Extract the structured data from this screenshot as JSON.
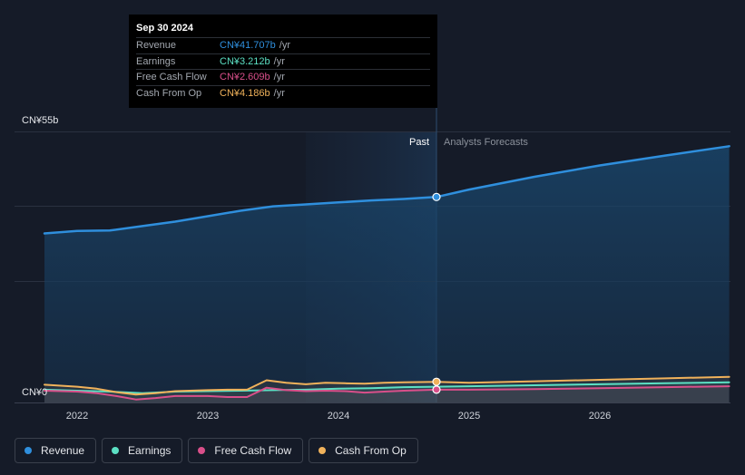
{
  "tooltip": {
    "date": "Sep 30 2024",
    "rows": [
      {
        "label": "Revenue",
        "value": "CN¥41.707b",
        "unit": "/yr",
        "color": "#2f8fdd"
      },
      {
        "label": "Earnings",
        "value": "CN¥3.212b",
        "unit": "/yr",
        "color": "#5ce0c4"
      },
      {
        "label": "Free Cash Flow",
        "value": "CN¥2.609b",
        "unit": "/yr",
        "color": "#d94f8a"
      },
      {
        "label": "Cash From Op",
        "value": "CN¥4.186b",
        "unit": "/yr",
        "color": "#f0b25b"
      }
    ]
  },
  "labels": {
    "past": "Past",
    "forecast": "Analysts Forecasts",
    "y_top": "CN¥55b",
    "y_zero": "CN¥0"
  },
  "legend": [
    {
      "label": "Revenue",
      "color": "#2f8fdd"
    },
    {
      "label": "Earnings",
      "color": "#5ce0c4"
    },
    {
      "label": "Free Cash Flow",
      "color": "#d94f8a"
    },
    {
      "label": "Cash From Op",
      "color": "#f0b25b"
    }
  ],
  "chart_data": {
    "type": "line",
    "x_ticks": [
      2022,
      2023,
      2024,
      2025,
      2026
    ],
    "xlim": [
      2021.7,
      2026.99
    ],
    "ylim": [
      0,
      55
    ],
    "y_unit": "CN¥ b",
    "past_until": 2024.75,
    "highlight_from": 2023.75,
    "series": [
      {
        "name": "Revenue",
        "color": "#2f8fdd",
        "fill": true,
        "x": [
          2021.75,
          2022.0,
          2022.25,
          2022.5,
          2022.75,
          2023.0,
          2023.25,
          2023.5,
          2023.75,
          2024.0,
          2024.25,
          2024.5,
          2024.75,
          2025.0,
          2025.5,
          2026.0,
          2026.5,
          2026.99
        ],
        "y": [
          34.3,
          34.8,
          34.9,
          35.8,
          36.7,
          37.8,
          38.9,
          39.8,
          40.2,
          40.6,
          41.0,
          41.3,
          41.7,
          43.2,
          45.8,
          48.1,
          50.1,
          52.0
        ]
      },
      {
        "name": "Earnings",
        "color": "#5ce0c4",
        "x": [
          2021.75,
          2022.0,
          2022.25,
          2022.5,
          2022.75,
          2023.0,
          2023.25,
          2023.5,
          2023.75,
          2024.0,
          2024.25,
          2024.5,
          2024.75,
          2025.0,
          2025.5,
          2026.0,
          2026.5,
          2026.99
        ],
        "y": [
          2.6,
          2.4,
          2.2,
          1.9,
          2.2,
          2.3,
          2.4,
          2.5,
          2.6,
          2.8,
          2.9,
          3.1,
          3.2,
          3.3,
          3.5,
          3.7,
          3.9,
          4.1
        ]
      },
      {
        "name": "Free Cash Flow",
        "color": "#d94f8a",
        "x": [
          2021.75,
          2022.0,
          2022.15,
          2022.3,
          2022.45,
          2022.6,
          2022.75,
          2023.0,
          2023.15,
          2023.3,
          2023.45,
          2023.6,
          2023.75,
          2023.9,
          2024.05,
          2024.2,
          2024.35,
          2024.5,
          2024.75,
          2025.0,
          2025.5,
          2026.0,
          2026.5,
          2026.99
        ],
        "y": [
          2.4,
          2.2,
          1.9,
          1.3,
          0.6,
          0.9,
          1.3,
          1.3,
          1.1,
          1.1,
          3.0,
          2.5,
          2.3,
          2.4,
          2.3,
          2.0,
          2.2,
          2.4,
          2.6,
          2.6,
          2.7,
          2.9,
          3.1,
          3.3
        ]
      },
      {
        "name": "Cash From Op",
        "color": "#f0b25b",
        "x": [
          2021.75,
          2022.0,
          2022.15,
          2022.3,
          2022.45,
          2022.6,
          2022.75,
          2023.0,
          2023.15,
          2023.3,
          2023.45,
          2023.6,
          2023.75,
          2023.9,
          2024.05,
          2024.2,
          2024.35,
          2024.5,
          2024.75,
          2025.0,
          2025.5,
          2026.0,
          2026.5,
          2026.99
        ],
        "y": [
          3.6,
          3.2,
          2.8,
          2.1,
          1.6,
          1.9,
          2.3,
          2.5,
          2.6,
          2.6,
          4.5,
          4.0,
          3.7,
          4.0,
          3.9,
          3.8,
          4.0,
          4.1,
          4.2,
          4.0,
          4.3,
          4.6,
          4.9,
          5.2
        ]
      }
    ],
    "markers": [
      {
        "series": "Revenue",
        "x": 2024.75,
        "y": 41.7
      },
      {
        "series": "Cash From Op",
        "x": 2024.75,
        "y": 4.2
      },
      {
        "series": "Free Cash Flow",
        "x": 2024.75,
        "y": 2.6
      }
    ]
  }
}
